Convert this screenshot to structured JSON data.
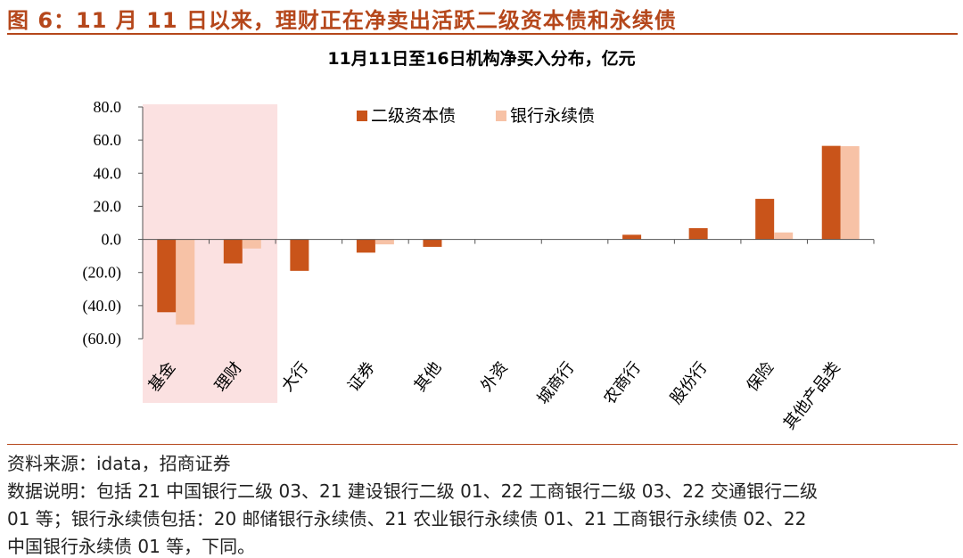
{
  "figure": {
    "title": "图 6：11 月 11 日以来，理财正在净卖出活跃二级资本债和永续债"
  },
  "colors": {
    "accent": "#b5471b",
    "series1": "#c9541a",
    "series2": "#f7c2a6",
    "highlight": "#fbe1e1"
  },
  "chart_data": {
    "type": "bar",
    "title": "11月11日至16日机构净买入分布，亿元",
    "categories": [
      "基金",
      "理财",
      "大行",
      "证券",
      "其他",
      "外资",
      "城商行",
      "农商行",
      "股份行",
      "保险",
      "其他产品类"
    ],
    "series": [
      {
        "name": "二级资本债",
        "values": [
          -44.0,
          -14.5,
          -19.0,
          -8.0,
          -4.5,
          0.0,
          0.0,
          2.8,
          6.8,
          24.5,
          56.5
        ]
      },
      {
        "name": "银行永续债",
        "values": [
          -51.5,
          -5.5,
          0.0,
          -3.0,
          0.0,
          0.0,
          0.0,
          0.0,
          0.0,
          4.2,
          56.3
        ]
      }
    ],
    "ylim": [
      -60,
      80
    ],
    "yticks": [
      "80.0",
      "60.0",
      "40.0",
      "20.0",
      "0.0",
      "(20.0)",
      "(40.0)",
      "(60.0)"
    ],
    "ytick_values": [
      80,
      60,
      40,
      20,
      0,
      -20,
      -40,
      -60
    ],
    "highlight_categories": [
      "基金",
      "理财"
    ],
    "legend_position": "top-center",
    "grid": false
  },
  "footer": {
    "source": "资料来源：idata，招商证券",
    "note_line1": "数据说明：包括 21 中国银行二级 03、21 建设银行二级 01、22 工商银行二级 03、22 交通银行二级",
    "note_line2": "01 等；银行永续债包括：20 邮储银行永续债、21 农业银行永续债 01、21 工商银行永续债 02、22",
    "note_line3": "中国银行永续债 01 等，下同。"
  }
}
